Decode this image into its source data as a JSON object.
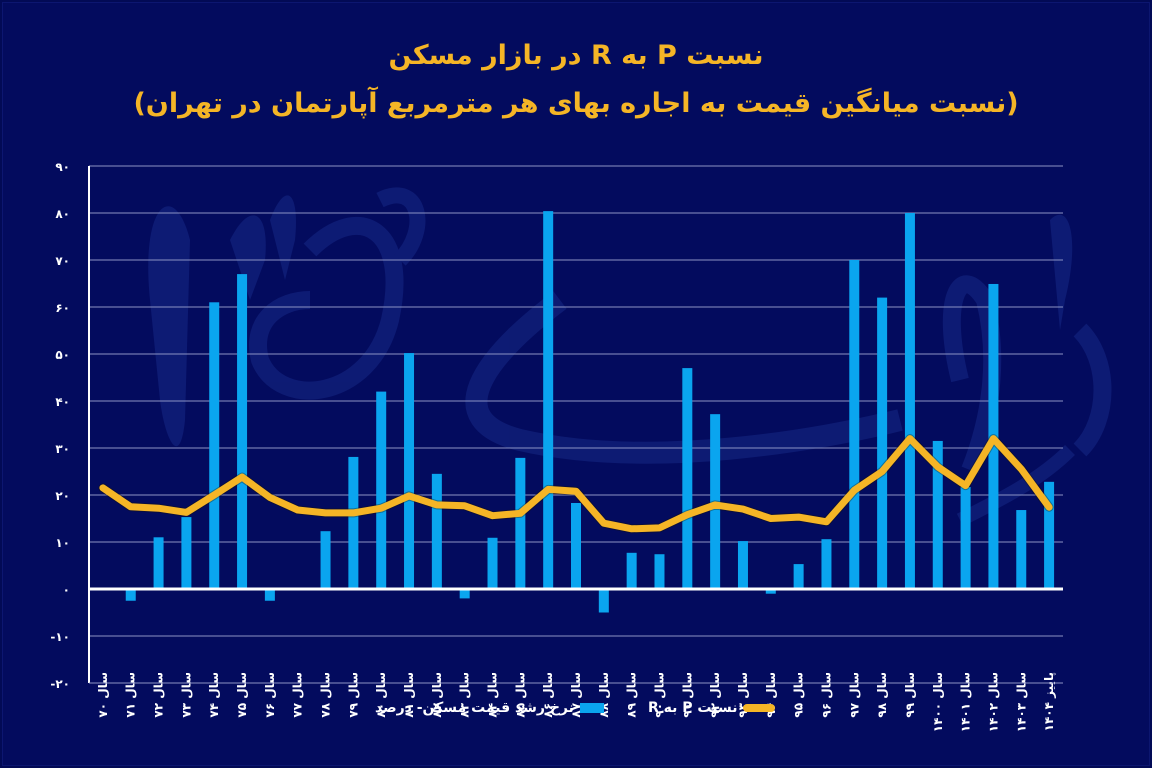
{
  "header": {
    "title_line1": "نسبت P به R در بازار مسکن",
    "title_line2": "(نسبت میانگین قیمت به اجاره بهای هر مترمربع آپارتمان در تهران)"
  },
  "legend": {
    "bar_label": "نرخ رشد قیمت مسکن- درصد",
    "line_label": "نسبت P به R"
  },
  "colors": {
    "background": "#030b5e",
    "bar": "#0aa5ef",
    "line": "#f5b526",
    "title": "#f5b526",
    "grid": "#8c93c4",
    "axis": "#ffffff",
    "watermark": "#1b2f8f"
  },
  "chart_data": {
    "type": "bar+line",
    "title": "نسبت P به R در بازار مسکن",
    "subtitle": "(نسبت میانگین قیمت به اجاره بهای هر مترمربع آپارتمان در تهران)",
    "xlabel": "",
    "ylabel": "",
    "ylim": [
      -20,
      90
    ],
    "yticks": [
      -20,
      -10,
      0,
      10,
      20,
      30,
      40,
      50,
      60,
      70,
      80,
      90
    ],
    "ytick_labels": [
      "-۲۰",
      "-۱۰",
      "۰",
      "۱۰",
      "۲۰",
      "۳۰",
      "۴۰",
      "۵۰",
      "۶۰",
      "۷۰",
      "۸۰",
      "۹۰"
    ],
    "grid": true,
    "legend_position": "bottom",
    "categories": [
      "سال ۷۰",
      "سال ۷۱",
      "سال ۷۲",
      "سال ۷۳",
      "سال ۷۴",
      "سال ۷۵",
      "سال ۷۶",
      "سال ۷۷",
      "سال ۷۸",
      "سال ۷۹",
      "سال ۸۰",
      "سال ۸۱",
      "سال ۸۲",
      "سال ۸۳",
      "سال ۸۴",
      "سال ۸۵",
      "سال ۸۶",
      "سال ۸۷",
      "سال ۸۸",
      "سال ۸۹",
      "سال ۹۰",
      "سال ۹۱",
      "سال ۹۲",
      "سال ۹۳",
      "سال ۹۴",
      "سال ۹۵",
      "سال ۹۶",
      "سال ۹۷",
      "سال ۹۸",
      "سال ۹۹",
      "سال ۱۴۰۰",
      "سال ۱۴۰۱",
      "سال ۱۴۰۲",
      "سال ۱۴۰۳",
      "پاییز ۱۴۰۴"
    ],
    "series": [
      {
        "name": "نرخ رشد قیمت مسکن- درصد",
        "type": "bar",
        "values": [
          0,
          -2.5,
          11,
          15.3,
          61,
          67,
          -2.5,
          0,
          12.3,
          28.1,
          42,
          50.2,
          24.5,
          -2,
          10.9,
          27.9,
          80.4,
          18.3,
          -5,
          7.7,
          7.4,
          47,
          37.2,
          10.2,
          -1,
          5.3,
          10.6,
          70,
          62,
          80,
          31.5,
          21.7,
          64.9,
          16.8,
          22.8
        ]
      },
      {
        "name": "نسبت P به R",
        "type": "line",
        "values": [
          21.5,
          17.5,
          17.2,
          16.3,
          20,
          23.8,
          19.5,
          16.8,
          16.2,
          16.2,
          17.2,
          19.8,
          17.9,
          17.7,
          15.6,
          16.1,
          21.2,
          20.8,
          14,
          12.8,
          13,
          15.8,
          17.9,
          17,
          15,
          15.3,
          14.3,
          21,
          25,
          32,
          26,
          22,
          32,
          25.5,
          17.4
        ]
      }
    ]
  }
}
